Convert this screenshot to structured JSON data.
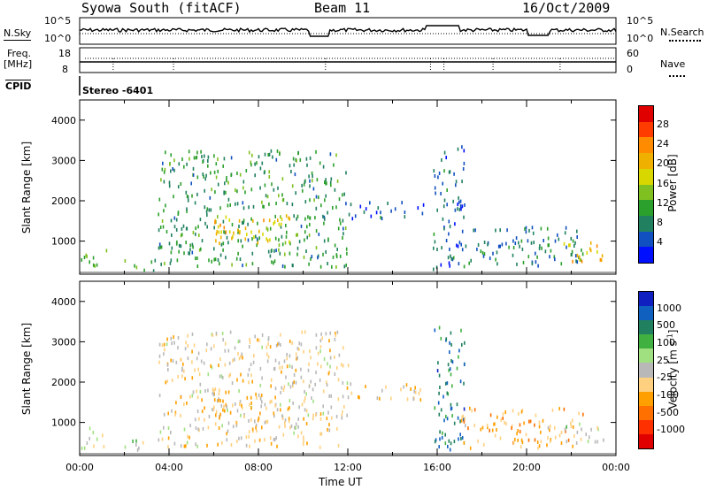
{
  "header": {
    "title_left": "Syowa South (fitACF)",
    "title_center": "Beam 11",
    "title_right": "16/Oct/2009"
  },
  "top_panels": {
    "nsky_label": "N.Sky",
    "nsky_ticks": [
      "10^5",
      "10^0"
    ],
    "nsky_right_ticks": [
      "10^5",
      "10^0"
    ],
    "nsearch_label": "N.Search",
    "freq_label_1": "Freq.",
    "freq_label_2": "[MHz]",
    "freq_ticks": [
      "18",
      "8"
    ],
    "nave_ticks": [
      "60",
      "0"
    ],
    "nave_label": "Nave",
    "cpid_label": "CPID",
    "cpid_value": "Stereo -6401"
  },
  "axes": {
    "ylabel": "Slant Range [km]",
    "xlabel": "Time UT",
    "x_ticks": [
      "00:00",
      "04:00",
      "08:00",
      "12:00",
      "16:00",
      "20:00",
      "00:00"
    ],
    "y_ticks": [
      "4000",
      "3000",
      "2000",
      "1000"
    ]
  },
  "colorbars": {
    "power": {
      "label": "Power [dB]",
      "ticks": [
        "28",
        "24",
        "20",
        "16",
        "12",
        "8",
        "4"
      ],
      "colors": [
        "#e00000",
        "#ff3c00",
        "#ff8c00",
        "#f0b000",
        "#d8d800",
        "#80c020",
        "#2ca02c",
        "#208060",
        "#1050c0",
        "#0010ff"
      ]
    },
    "velocity": {
      "label": "Velocity [m s",
      "label_sup": "-1",
      "label_end": "]",
      "ticks": [
        "1000",
        "500",
        "100",
        "25",
        "-25",
        "-100",
        "-500",
        "-1000"
      ],
      "colors": [
        "#1020c0",
        "#1060c0",
        "#208060",
        "#40b040",
        "#a0e080",
        "#b8b8b8",
        "#ffd080",
        "#ffa000",
        "#ff7000",
        "#ff3000",
        "#e00000"
      ]
    }
  },
  "chart_data": [
    {
      "type": "heatmap",
      "title": "",
      "xlabel": "",
      "ylabel": "Slant Range [km]",
      "x_range_hours_ut": [
        0,
        24
      ],
      "ylim_km": [
        180,
        4500
      ],
      "zlabel": "Power [dB]",
      "zlim": [
        0,
        32
      ],
      "scatter_regions": [
        {
          "t_start": 0.0,
          "t_end": 1.2,
          "r_min": 400,
          "r_max": 900,
          "value": 14
        },
        {
          "t_start": 2.0,
          "t_end": 3.4,
          "r_min": 300,
          "r_max": 600,
          "value": 10
        },
        {
          "t_start": 3.5,
          "t_end": 12.0,
          "r_min": 400,
          "r_max": 3300,
          "value": 10
        },
        {
          "t_start": 6.0,
          "t_end": 9.5,
          "r_min": 900,
          "r_max": 1700,
          "value": 20
        },
        {
          "t_start": 12.0,
          "t_end": 15.5,
          "r_min": 1600,
          "r_max": 2000,
          "value": 6
        },
        {
          "t_start": 15.8,
          "t_end": 17.2,
          "r_min": 300,
          "r_max": 3400,
          "value": 6
        },
        {
          "t_start": 17.0,
          "t_end": 22.5,
          "r_min": 400,
          "r_max": 1400,
          "value": 8
        },
        {
          "t_start": 21.5,
          "t_end": 23.5,
          "r_min": 500,
          "r_max": 1000,
          "value": 20
        }
      ]
    },
    {
      "type": "heatmap",
      "title": "",
      "xlabel": "Time UT",
      "ylabel": "Slant Range [km]",
      "x_range_hours_ut": [
        0,
        24
      ],
      "ylim_km": [
        180,
        4500
      ],
      "zlabel": "Velocity [m s-1]",
      "zlim": [
        -1000,
        1000
      ],
      "scatter_regions": [
        {
          "t_start": 0.0,
          "t_end": 1.2,
          "r_min": 400,
          "r_max": 900,
          "value": 100
        },
        {
          "t_start": 2.0,
          "t_end": 3.4,
          "r_min": 300,
          "r_max": 600,
          "value": 100
        },
        {
          "t_start": 3.5,
          "t_end": 12.0,
          "r_min": 400,
          "r_max": 3300,
          "value": -100
        },
        {
          "t_start": 6.0,
          "t_end": 9.5,
          "r_min": 900,
          "r_max": 1700,
          "value": -200
        },
        {
          "t_start": 12.0,
          "t_end": 15.5,
          "r_min": 1600,
          "r_max": 2000,
          "value": -200
        },
        {
          "t_start": 15.8,
          "t_end": 17.2,
          "r_min": 300,
          "r_max": 3400,
          "value": 600
        },
        {
          "t_start": 17.0,
          "t_end": 22.5,
          "r_min": 400,
          "r_max": 1400,
          "value": -300
        },
        {
          "t_start": 21.5,
          "t_end": 23.5,
          "r_min": 500,
          "r_max": 1000,
          "value": 100
        }
      ]
    }
  ]
}
